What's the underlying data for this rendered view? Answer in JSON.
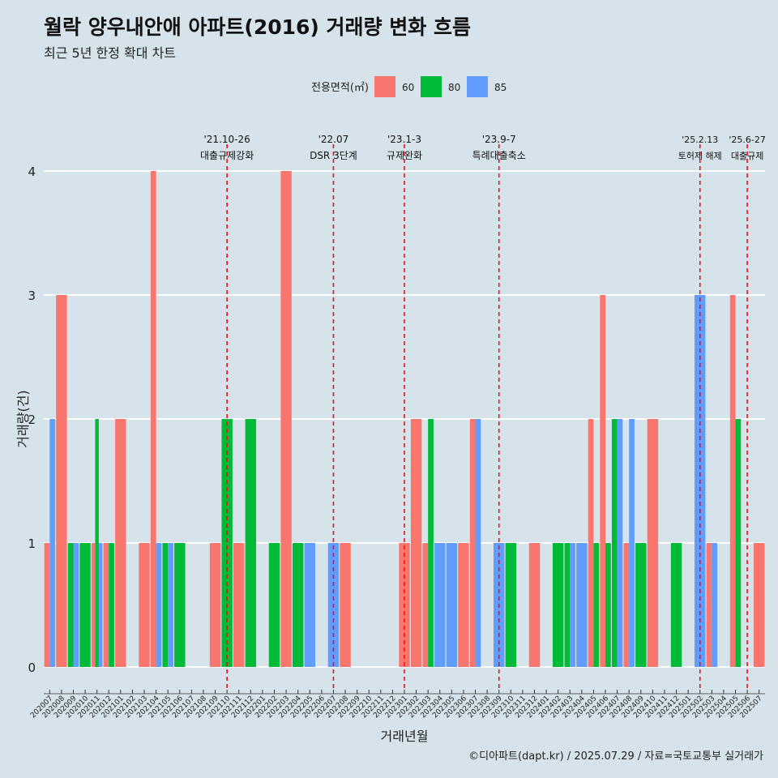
{
  "title": "월락 양우내안애 아파트(2016) 거래량 변화 흐름",
  "subtitle": "최근 5년 한정 확대 차트",
  "caption": "©디아파트(dapt.kr) / 2025.07.29 / 자료=국토교통부 실거래가",
  "chart_data": {
    "type": "bar",
    "xlabel": "거래년월",
    "ylabel": "거래량(건)",
    "ylim": [
      0,
      4
    ],
    "yticks": [
      0,
      1,
      2,
      3,
      4
    ],
    "grid": true,
    "legend": {
      "title": "전용면적(㎡)",
      "placement": "top",
      "entries": [
        {
          "name": "60",
          "color": "#f8766d"
        },
        {
          "name": "80",
          "color": "#00ba38"
        },
        {
          "name": "85",
          "color": "#619cff"
        }
      ]
    },
    "categories": [
      "202007",
      "202008",
      "202009",
      "202010",
      "202011",
      "202012",
      "202101",
      "202102",
      "202103",
      "202104",
      "202105",
      "202106",
      "202107",
      "202108",
      "202109",
      "202110",
      "202111",
      "202112",
      "202201",
      "202202",
      "202203",
      "202204",
      "202205",
      "202206",
      "202207",
      "202208",
      "202209",
      "202210",
      "202211",
      "202212",
      "202301",
      "202302",
      "202303",
      "202304",
      "202305",
      "202306",
      "202307",
      "202308",
      "202309",
      "202310",
      "202311",
      "202312",
      "202401",
      "202402",
      "202403",
      "202404",
      "202405",
      "202406",
      "202407",
      "202408",
      "202409",
      "202410",
      "202411",
      "202412",
      "202501",
      "202502",
      "202503",
      "202504",
      "202505",
      "202506",
      "202507"
    ],
    "series": [
      {
        "name": "60",
        "color": "#f8766d",
        "values": [
          1,
          3,
          0,
          0,
          1,
          1,
          2,
          0,
          1,
          4,
          0,
          0,
          0,
          0,
          1,
          0,
          1,
          0,
          0,
          0,
          4,
          0,
          0,
          0,
          0,
          1,
          0,
          0,
          0,
          0,
          1,
          2,
          1,
          0,
          0,
          1,
          2,
          0,
          0,
          0,
          0,
          1,
          0,
          0,
          0,
          0,
          2,
          3,
          0,
          1,
          0,
          2,
          0,
          0,
          0,
          0,
          1,
          0,
          3,
          0,
          1
        ]
      },
      {
        "name": "80",
        "color": "#00ba38",
        "values": [
          0,
          0,
          1,
          1,
          2,
          1,
          0,
          0,
          0,
          0,
          1,
          1,
          0,
          0,
          0,
          2,
          0,
          2,
          0,
          1,
          0,
          1,
          0,
          0,
          0,
          0,
          0,
          0,
          0,
          0,
          0,
          0,
          2,
          0,
          0,
          0,
          0,
          0,
          0,
          1,
          0,
          0,
          0,
          1,
          1,
          0,
          1,
          1,
          2,
          0,
          1,
          0,
          0,
          1,
          0,
          0,
          0,
          0,
          2,
          0,
          0
        ]
      },
      {
        "name": "85",
        "color": "#619cff",
        "values": [
          2,
          0,
          1,
          0,
          1,
          0,
          0,
          0,
          0,
          1,
          1,
          0,
          0,
          0,
          0,
          0,
          0,
          0,
          0,
          0,
          0,
          0,
          1,
          0,
          1,
          0,
          0,
          0,
          0,
          0,
          0,
          0,
          0,
          1,
          1,
          0,
          2,
          0,
          1,
          0,
          0,
          0,
          0,
          0,
          1,
          1,
          0,
          0,
          2,
          2,
          0,
          0,
          0,
          0,
          0,
          3,
          1,
          0,
          0,
          0,
          0
        ]
      }
    ],
    "annotations": [
      {
        "date": "'21.10-26",
        "label": "대출규제강화",
        "category": "202110"
      },
      {
        "date": "'22.07",
        "label": "DSR 3단계",
        "category": "202207"
      },
      {
        "date": "'23.1-3",
        "label": "규제완화",
        "category": "202301"
      },
      {
        "date": "'23.9-7",
        "label": "특례대출축소",
        "category": "202309"
      },
      {
        "date": "'25.2.13",
        "label": "토허제 해제",
        "category": "202502"
      },
      {
        "date": "'25.6-27",
        "label": "대출규제",
        "category": "202506"
      }
    ]
  }
}
